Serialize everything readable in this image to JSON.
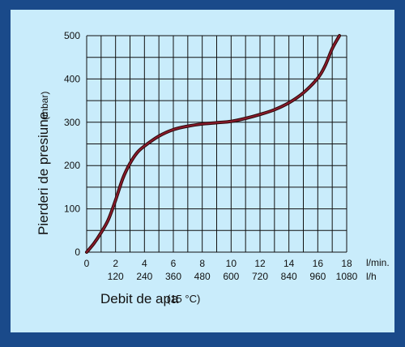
{
  "chart_data": {
    "type": "line",
    "ylabel": "Pierderi de presiune",
    "ylabel_unit": "(mbar)",
    "xlabel": "Debit de apa",
    "xlabel_note": "(15 °C)",
    "x_unit_primary": "l/min.",
    "x_unit_secondary": "l/h",
    "xlim": [
      0,
      18
    ],
    "ylim": [
      0,
      500
    ],
    "grid": true,
    "x_ticks_lmin": [
      "0",
      "2",
      "4",
      "6",
      "8",
      "10",
      "12",
      "14",
      "16",
      "18"
    ],
    "x_ticks_lh": [
      "120",
      "240",
      "360",
      "480",
      "600",
      "720",
      "840",
      "960",
      "1080"
    ],
    "y_ticks": [
      "0",
      "100",
      "200",
      "300",
      "400",
      "500"
    ],
    "series": [
      {
        "color": "#8b1a2b",
        "x": [
          0,
          0.5,
          1,
          1.5,
          2,
          2.5,
          3,
          3.5,
          4,
          5,
          6,
          7,
          8,
          9,
          10,
          11,
          12,
          13,
          14,
          15,
          16,
          16.5,
          17,
          17.5
        ],
        "y": [
          0,
          20,
          45,
          75,
          120,
          170,
          205,
          230,
          245,
          268,
          283,
          291,
          296,
          299,
          302,
          309,
          318,
          329,
          345,
          368,
          402,
          430,
          470,
          500
        ]
      }
    ]
  }
}
